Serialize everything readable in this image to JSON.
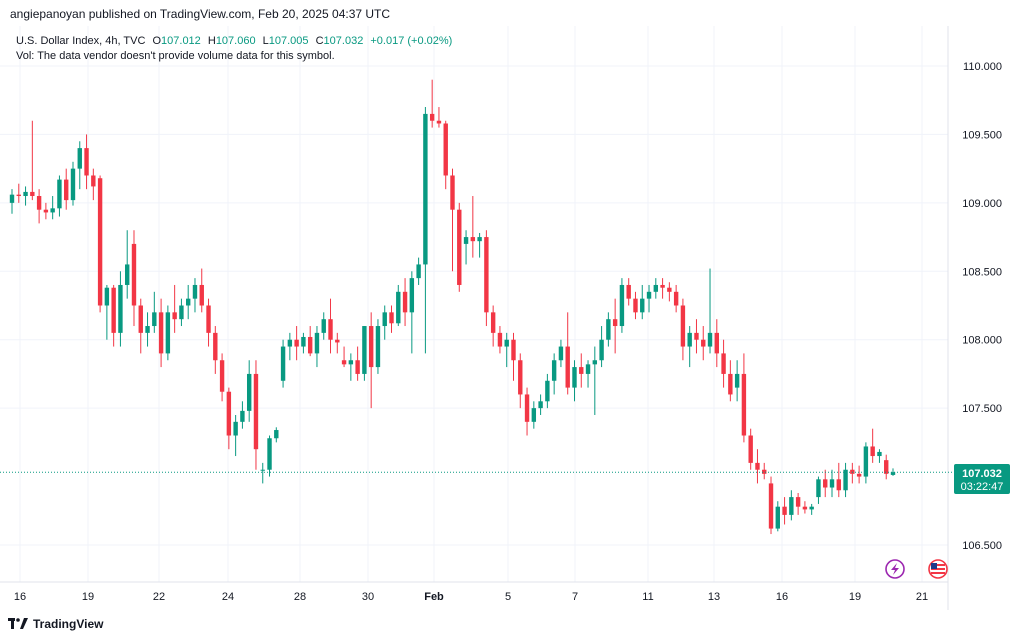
{
  "header": {
    "published": "angiepanoyan published on TradingView.com, Feb 20, 2025 04:37 UTC"
  },
  "legend": {
    "symbol": "U.S. Dollar Index, 4h, TVC",
    "o_label": "O",
    "o": "107.012",
    "h_label": "H",
    "h": "107.060",
    "l_label": "L",
    "l": "107.005",
    "c_label": "C",
    "c": "107.032",
    "change": "+0.017 (+0.02%)",
    "vol_note": "Vol: The data vendor doesn't provide volume data for this symbol."
  },
  "price_badge": {
    "price": "107.032",
    "countdown": "03:22:47"
  },
  "footer": {
    "brand": "TradingView"
  },
  "colors": {
    "up": "#089981",
    "down": "#f23645",
    "grid": "#f0f3fa",
    "text": "#131722"
  },
  "icons": {
    "event_flash": "lightning-icon",
    "event_flag": "us-flag-icon"
  },
  "chart_data": {
    "type": "candlestick",
    "title": "U.S. Dollar Index, 4h, TVC",
    "ylim": [
      106.3,
      110.2
    ],
    "y_ticks": [
      "110.000",
      "109.500",
      "109.000",
      "108.500",
      "108.000",
      "107.500",
      "106.500"
    ],
    "x_ticks": [
      "16",
      "19",
      "22",
      "24",
      "28",
      "30",
      "Feb",
      "5",
      "7",
      "11",
      "13",
      "16",
      "19",
      "21"
    ],
    "last_price": 107.032,
    "grid": true,
    "candles": [
      [
        109.0,
        109.1,
        108.92,
        109.06
      ],
      [
        109.06,
        109.14,
        109.0,
        109.05
      ],
      [
        109.05,
        109.12,
        108.98,
        109.08
      ],
      [
        109.08,
        109.6,
        109.02,
        109.05
      ],
      [
        109.05,
        109.1,
        108.85,
        108.95
      ],
      [
        108.95,
        109.0,
        108.88,
        108.93
      ],
      [
        108.93,
        109.05,
        108.88,
        108.96
      ],
      [
        108.96,
        109.2,
        108.9,
        109.17
      ],
      [
        109.17,
        109.25,
        108.95,
        109.02
      ],
      [
        109.02,
        109.3,
        108.98,
        109.25
      ],
      [
        109.25,
        109.45,
        109.1,
        109.4
      ],
      [
        109.4,
        109.5,
        109.1,
        109.2
      ],
      [
        109.2,
        109.25,
        109.02,
        109.12
      ],
      [
        109.18,
        109.2,
        108.2,
        108.25
      ],
      [
        108.25,
        108.4,
        108.0,
        108.38
      ],
      [
        108.38,
        108.4,
        107.95,
        108.05
      ],
      [
        108.05,
        108.5,
        107.95,
        108.4
      ],
      [
        108.4,
        108.8,
        108.3,
        108.55
      ],
      [
        108.7,
        108.8,
        108.1,
        108.25
      ],
      [
        108.25,
        108.3,
        107.9,
        108.05
      ],
      [
        108.05,
        108.2,
        107.95,
        108.1
      ],
      [
        108.1,
        108.35,
        108.05,
        108.2
      ],
      [
        108.2,
        108.3,
        107.8,
        107.9
      ],
      [
        107.9,
        108.25,
        107.85,
        108.2
      ],
      [
        108.2,
        108.4,
        108.05,
        108.15
      ],
      [
        108.15,
        108.3,
        108.1,
        108.25
      ],
      [
        108.25,
        108.4,
        108.15,
        108.3
      ],
      [
        108.3,
        108.45,
        108.2,
        108.4
      ],
      [
        108.4,
        108.52,
        108.2,
        108.25
      ],
      [
        108.25,
        108.3,
        107.95,
        108.05
      ],
      [
        108.05,
        108.1,
        107.75,
        107.85
      ],
      [
        107.85,
        107.9,
        107.55,
        107.62
      ],
      [
        107.62,
        107.65,
        107.2,
        107.3
      ],
      [
        107.3,
        107.45,
        107.15,
        107.4
      ],
      [
        107.4,
        107.55,
        107.35,
        107.48
      ],
      [
        107.48,
        107.85,
        107.4,
        107.75
      ],
      [
        107.75,
        107.85,
        107.05,
        107.2
      ],
      [
        107.05,
        107.1,
        106.95,
        107.05
      ],
      [
        107.05,
        107.3,
        107.0,
        107.28
      ],
      [
        107.28,
        107.36,
        107.25,
        107.34
      ],
      [
        107.7,
        108.0,
        107.65,
        107.95
      ],
      [
        107.95,
        108.05,
        107.85,
        108.0
      ],
      [
        108.0,
        108.1,
        107.85,
        107.95
      ],
      [
        107.95,
        108.05,
        107.9,
        108.02
      ],
      [
        108.02,
        108.1,
        107.88,
        107.9
      ],
      [
        107.9,
        108.1,
        107.8,
        108.05
      ],
      [
        108.05,
        108.2,
        108.0,
        108.15
      ],
      [
        108.15,
        108.3,
        107.9,
        108.0
      ],
      [
        108.0,
        108.05,
        107.9,
        107.98
      ],
      [
        107.85,
        107.95,
        107.8,
        107.82
      ],
      [
        107.82,
        107.9,
        107.7,
        107.85
      ],
      [
        107.85,
        107.95,
        107.7,
        107.75
      ],
      [
        107.75,
        108.1,
        107.7,
        108.1
      ],
      [
        108.1,
        108.2,
        107.5,
        107.8
      ],
      [
        107.8,
        108.15,
        107.75,
        108.1
      ],
      [
        108.1,
        108.25,
        108.0,
        108.2
      ],
      [
        108.2,
        108.25,
        108.05,
        108.12
      ],
      [
        108.12,
        108.4,
        108.1,
        108.35
      ],
      [
        108.35,
        108.45,
        108.1,
        108.2
      ],
      [
        108.2,
        108.5,
        107.9,
        108.45
      ],
      [
        108.45,
        108.6,
        108.4,
        108.55
      ],
      [
        108.55,
        109.7,
        107.9,
        109.65
      ],
      [
        109.65,
        109.9,
        109.55,
        109.6
      ],
      [
        109.6,
        109.7,
        109.55,
        109.58
      ],
      [
        109.58,
        109.6,
        109.1,
        109.2
      ],
      [
        109.2,
        109.25,
        108.5,
        108.95
      ],
      [
        108.95,
        109.0,
        108.35,
        108.4
      ],
      [
        108.7,
        108.8,
        108.55,
        108.75
      ],
      [
        108.75,
        109.05,
        108.6,
        108.72
      ],
      [
        108.72,
        108.78,
        108.6,
        108.75
      ],
      [
        108.75,
        108.8,
        108.1,
        108.2
      ],
      [
        108.2,
        108.25,
        107.95,
        108.05
      ],
      [
        108.05,
        108.1,
        107.9,
        107.95
      ],
      [
        107.95,
        108.05,
        107.8,
        108.0
      ],
      [
        108.0,
        108.05,
        107.7,
        107.85
      ],
      [
        107.85,
        107.9,
        107.5,
        107.6
      ],
      [
        107.6,
        107.65,
        107.3,
        107.4
      ],
      [
        107.4,
        107.55,
        107.35,
        107.5
      ],
      [
        107.5,
        107.6,
        107.45,
        107.55
      ],
      [
        107.55,
        107.75,
        107.5,
        107.7
      ],
      [
        107.7,
        107.9,
        107.6,
        107.85
      ],
      [
        107.85,
        108.0,
        107.8,
        107.95
      ],
      [
        107.95,
        108.2,
        107.6,
        107.65
      ],
      [
        107.65,
        107.85,
        107.55,
        107.8
      ],
      [
        107.8,
        107.9,
        107.65,
        107.75
      ],
      [
        107.75,
        107.85,
        107.65,
        107.82
      ],
      [
        107.82,
        107.95,
        107.45,
        107.85
      ],
      [
        107.85,
        108.1,
        107.8,
        108.0
      ],
      [
        108.0,
        108.2,
        107.95,
        108.15
      ],
      [
        108.15,
        108.3,
        107.9,
        108.1
      ],
      [
        108.1,
        108.45,
        108.05,
        108.4
      ],
      [
        108.4,
        108.45,
        108.25,
        108.3
      ],
      [
        108.3,
        108.35,
        108.15,
        108.2
      ],
      [
        108.2,
        108.4,
        108.15,
        108.3
      ],
      [
        108.3,
        108.4,
        108.2,
        108.35
      ],
      [
        108.35,
        108.45,
        108.3,
        108.4
      ],
      [
        108.4,
        108.45,
        108.3,
        108.38
      ],
      [
        108.38,
        108.42,
        108.28,
        108.35
      ],
      [
        108.35,
        108.4,
        108.2,
        108.25
      ],
      [
        108.25,
        108.3,
        107.85,
        107.95
      ],
      [
        107.95,
        108.1,
        107.8,
        108.05
      ],
      [
        108.05,
        108.15,
        107.9,
        108.0
      ],
      [
        108.0,
        108.1,
        107.85,
        107.95
      ],
      [
        107.95,
        108.52,
        107.9,
        108.05
      ],
      [
        108.05,
        108.15,
        107.8,
        107.9
      ],
      [
        107.9,
        108.0,
        107.65,
        107.75
      ],
      [
        107.75,
        107.85,
        107.55,
        107.6
      ],
      [
        107.65,
        107.85,
        107.55,
        107.75
      ],
      [
        107.75,
        107.9,
        107.25,
        107.3
      ],
      [
        107.3,
        107.35,
        107.05,
        107.1
      ],
      [
        107.1,
        107.2,
        106.95,
        107.05
      ],
      [
        107.05,
        107.1,
        106.98,
        107.02
      ],
      [
        106.95,
        107.0,
        106.58,
        106.62
      ],
      [
        106.62,
        106.82,
        106.6,
        106.78
      ],
      [
        106.78,
        106.85,
        106.65,
        106.72
      ],
      [
        106.72,
        106.9,
        106.68,
        106.85
      ],
      [
        106.85,
        106.88,
        106.72,
        106.78
      ],
      [
        106.78,
        106.82,
        106.73,
        106.76
      ],
      [
        106.76,
        106.8,
        106.72,
        106.78
      ],
      [
        106.85,
        107.0,
        106.8,
        106.98
      ],
      [
        106.98,
        107.05,
        106.85,
        106.92
      ],
      [
        106.92,
        107.05,
        106.85,
        106.98
      ],
      [
        106.98,
        107.1,
        106.85,
        106.9
      ],
      [
        106.9,
        107.1,
        106.85,
        107.05
      ],
      [
        107.05,
        107.1,
        106.95,
        107.02
      ],
      [
        107.02,
        107.08,
        106.95,
        107.0
      ],
      [
        107.0,
        107.25,
        106.95,
        107.22
      ],
      [
        107.22,
        107.35,
        107.1,
        107.15
      ],
      [
        107.15,
        107.2,
        107.1,
        107.18
      ],
      [
        107.12,
        107.16,
        106.98,
        107.02
      ],
      [
        107.012,
        107.06,
        107.005,
        107.032
      ]
    ]
  }
}
